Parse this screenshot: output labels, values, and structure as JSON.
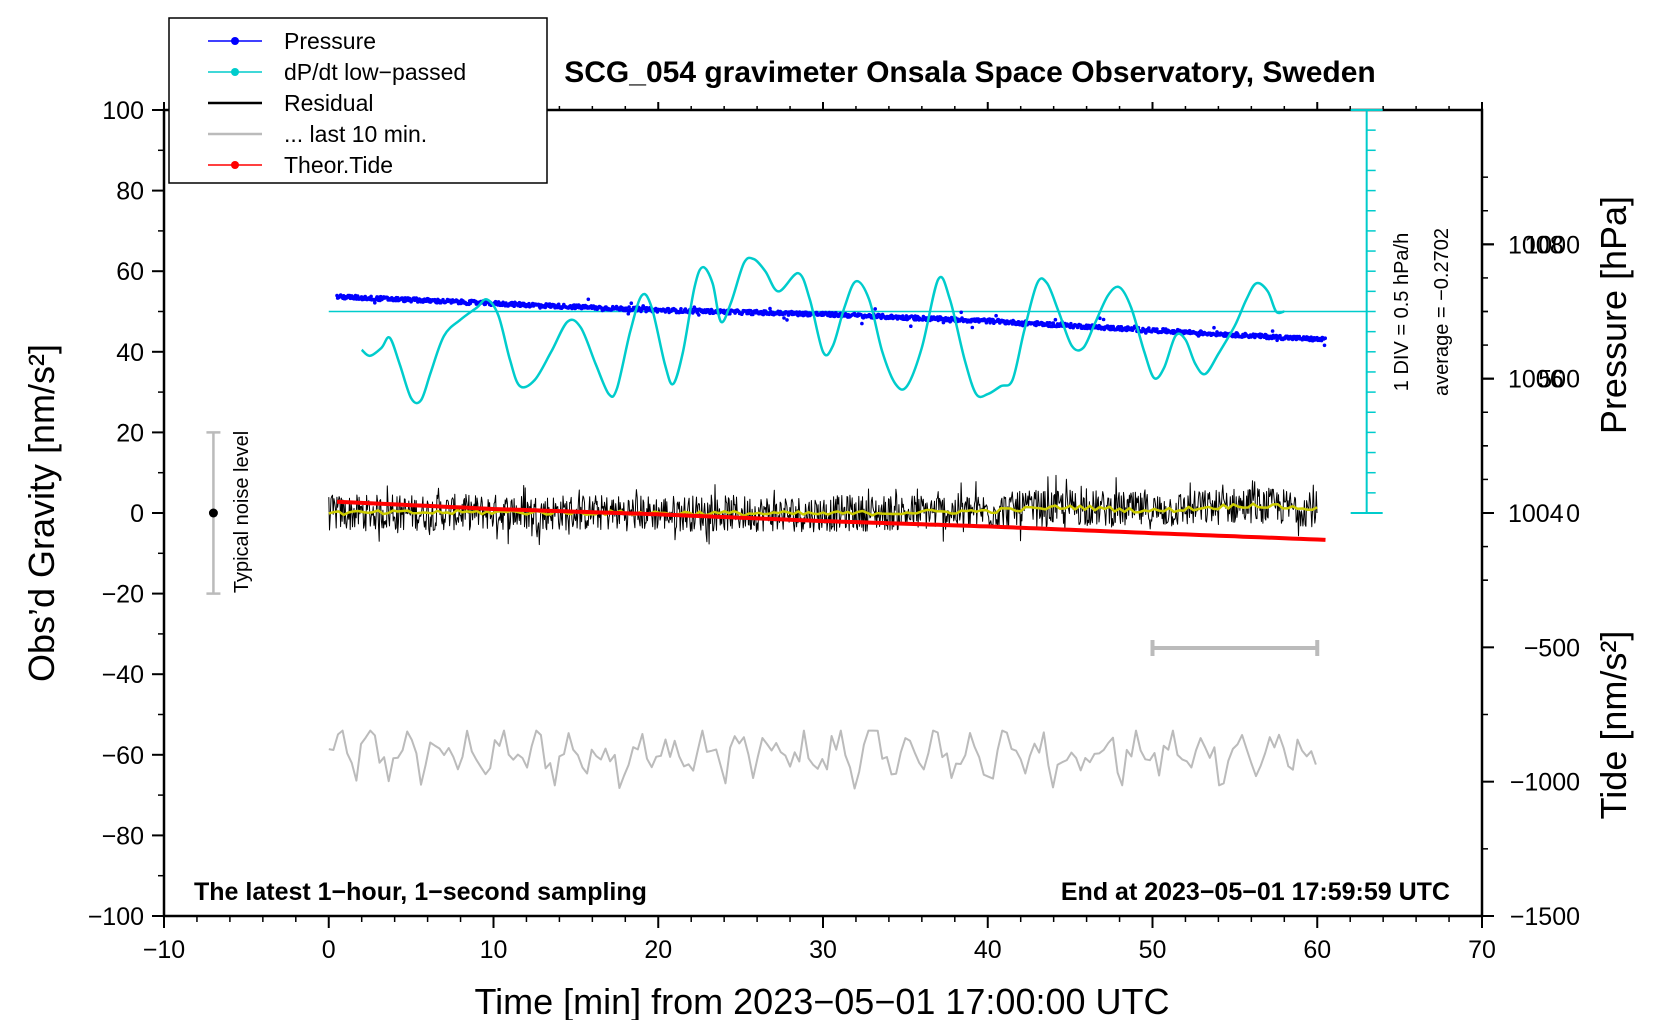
{
  "chart_data": {
    "type": "line",
    "title": "SCG_054 gravimeter Onsala Space Observatory, Sweden",
    "xlabel": "Time [min] from 2023−05−01 17:00:00 UTC",
    "ylabel_left": "Obs’d Gravity [nm/s²]",
    "ylabel_right_top": "Pressure [hPa]",
    "ylabel_right_bottom": "Tide [nm/s²]",
    "xlim": [
      -10,
      70
    ],
    "ylim": [
      -100,
      100
    ],
    "x_ticks": [
      "−10",
      "0",
      "10",
      "20",
      "30",
      "40",
      "50",
      "60",
      "70"
    ],
    "x_tick_values": [
      -10,
      0,
      10,
      20,
      30,
      40,
      50,
      60,
      70
    ],
    "y_ticks": [
      "−100",
      "−80",
      "−60",
      "−40",
      "−20",
      "0",
      "20",
      "40",
      "60",
      "80",
      "100"
    ],
    "y_tick_values": [
      -100,
      -80,
      -60,
      -40,
      -20,
      0,
      20,
      40,
      60,
      80,
      100
    ],
    "pressure_axis": {
      "ticks": [
        "1004",
        "1006",
        "1008"
      ],
      "tick_values": [
        1004,
        1006,
        1008
      ],
      "range": [
        998,
        1010
      ]
    },
    "tide_axis": {
      "ticks": [
        "−1500",
        "−1000",
        "−500",
        "0",
        "500",
        "1000"
      ],
      "tick_values": [
        -1500,
        -1000,
        -500,
        0,
        500,
        1000
      ],
      "range": [
        -1500,
        1500
      ]
    },
    "legend": {
      "placement": "top-left",
      "items": [
        {
          "label": "Pressure",
          "color": "#0000ff",
          "marker": "dot"
        },
        {
          "label": "dP/dt low−passed",
          "color": "#00cccc",
          "marker": "dot"
        },
        {
          "label": "Residual",
          "color": "#000000",
          "marker": "none"
        },
        {
          "label": "... last 10 min.",
          "color": "#bbbbbb",
          "marker": "none"
        },
        {
          "label": "Theor.Tide",
          "color": "#ff0000",
          "marker": "dot"
        }
      ]
    },
    "annotations": {
      "noise_label": "Typical noise level",
      "div_label": "1 DIV = 0.5 hPa/h",
      "average_label": "average = −0.2702",
      "footer_left": "The latest 1−hour, 1−second sampling",
      "footer_right": "End at 2023−05−01 17:59:59 UTC"
    },
    "noise_bar": {
      "x": -7,
      "center": 0,
      "low": -20,
      "high": 20
    },
    "dpdt_scale": {
      "x": 63,
      "baseline": 50,
      "zero": 0,
      "top": 100
    },
    "ten_min_bar": {
      "x_start": 50,
      "x_end": 60,
      "y": -33.5
    },
    "series": [
      {
        "name": "Pressure",
        "color": "#0000ff",
        "unit": "hPa",
        "points": [
          [
            0.5,
            1007.22
          ],
          [
            10,
            1007.12
          ],
          [
            20,
            1007.02
          ],
          [
            30,
            1006.96
          ],
          [
            40,
            1006.86
          ],
          [
            50,
            1006.72
          ],
          [
            60.5,
            1006.58
          ]
        ]
      },
      {
        "name": "dP/dt low−passed",
        "color": "#00cccc",
        "unit": "nm/s² scale",
        "points": [
          [
            2.0,
            40.5
          ],
          [
            2.5,
            39.0
          ],
          [
            3.2,
            41.0
          ],
          [
            3.7,
            43.5
          ],
          [
            4.3,
            37.0
          ],
          [
            5.0,
            28.5
          ],
          [
            5.6,
            28.0
          ],
          [
            6.2,
            35.0
          ],
          [
            7.0,
            44.0
          ],
          [
            8.0,
            48.0
          ],
          [
            9.0,
            51.0
          ],
          [
            9.6,
            53.0
          ],
          [
            10.3,
            49.0
          ],
          [
            11.0,
            38.0
          ],
          [
            11.6,
            31.5
          ],
          [
            12.5,
            33.0
          ],
          [
            13.5,
            40.0
          ],
          [
            14.5,
            47.5
          ],
          [
            15.3,
            46.0
          ],
          [
            16.2,
            37.0
          ],
          [
            17.0,
            29.5
          ],
          [
            17.5,
            31.0
          ],
          [
            18.3,
            45.0
          ],
          [
            19.0,
            54.0
          ],
          [
            19.6,
            51.0
          ],
          [
            20.4,
            37.0
          ],
          [
            20.9,
            32.0
          ],
          [
            21.5,
            40.0
          ],
          [
            22.2,
            56.0
          ],
          [
            22.7,
            61.0
          ],
          [
            23.3,
            57.0
          ],
          [
            23.8,
            47.5
          ],
          [
            24.4,
            52.0
          ],
          [
            25.2,
            62.0
          ],
          [
            25.8,
            63.0
          ],
          [
            26.5,
            60.0
          ],
          [
            27.3,
            55.0
          ],
          [
            28.5,
            59.5
          ],
          [
            29.2,
            53.0
          ],
          [
            30.0,
            40.0
          ],
          [
            30.6,
            41.5
          ],
          [
            31.3,
            51.0
          ],
          [
            32.0,
            57.5
          ],
          [
            32.8,
            53.0
          ],
          [
            33.6,
            40.0
          ],
          [
            34.4,
            32.0
          ],
          [
            35.1,
            31.5
          ],
          [
            36.0,
            41.0
          ],
          [
            37.0,
            58.0
          ],
          [
            37.7,
            53.0
          ],
          [
            38.6,
            38.0
          ],
          [
            39.3,
            29.5
          ],
          [
            40.0,
            29.5
          ],
          [
            40.8,
            31.5
          ],
          [
            41.5,
            33.0
          ],
          [
            42.2,
            45.0
          ],
          [
            43.0,
            57.0
          ],
          [
            43.6,
            57.0
          ],
          [
            44.3,
            50.0
          ],
          [
            45.1,
            41.5
          ],
          [
            45.8,
            41.0
          ],
          [
            46.5,
            47.0
          ],
          [
            47.3,
            54.0
          ],
          [
            48.0,
            56.0
          ],
          [
            48.7,
            51.0
          ],
          [
            49.5,
            40.0
          ],
          [
            50.1,
            33.5
          ],
          [
            50.7,
            36.0
          ],
          [
            51.4,
            44.0
          ],
          [
            52.0,
            43.0
          ],
          [
            52.6,
            37.0
          ],
          [
            53.2,
            34.5
          ],
          [
            54.0,
            39.5
          ],
          [
            55.0,
            46.5
          ],
          [
            55.7,
            53.0
          ],
          [
            56.3,
            57.0
          ],
          [
            57.0,
            55.0
          ],
          [
            57.5,
            50.0
          ],
          [
            58.0,
            50.0
          ]
        ]
      },
      {
        "name": "Residual",
        "color": "#000000",
        "envelope": [
          -8,
          8
        ],
        "x_range": [
          0,
          60
        ]
      },
      {
        "name": "Residual smoothed",
        "color": "#cccc00",
        "points": [
          [
            0,
            0
          ],
          [
            10,
            0.2
          ],
          [
            20,
            0
          ],
          [
            30,
            -0.2
          ],
          [
            40,
            0.5
          ],
          [
            45,
            1.5
          ],
          [
            50,
            0.5
          ],
          [
            56,
            2.0
          ],
          [
            60,
            1.0
          ]
        ]
      },
      {
        "name": "... last 10 min.",
        "color": "#bbbbbb",
        "center": -60,
        "envelope": [
          -70,
          -54
        ],
        "x_range": [
          0,
          60
        ]
      },
      {
        "name": "Theor.Tide",
        "color": "#ff0000",
        "unit": "nm/s²",
        "points": [
          [
            0.5,
            42
          ],
          [
            10,
            15
          ],
          [
            20,
            -5
          ],
          [
            30,
            -30
          ],
          [
            40,
            -50
          ],
          [
            50,
            -75
          ],
          [
            60.5,
            -100
          ]
        ]
      }
    ]
  }
}
